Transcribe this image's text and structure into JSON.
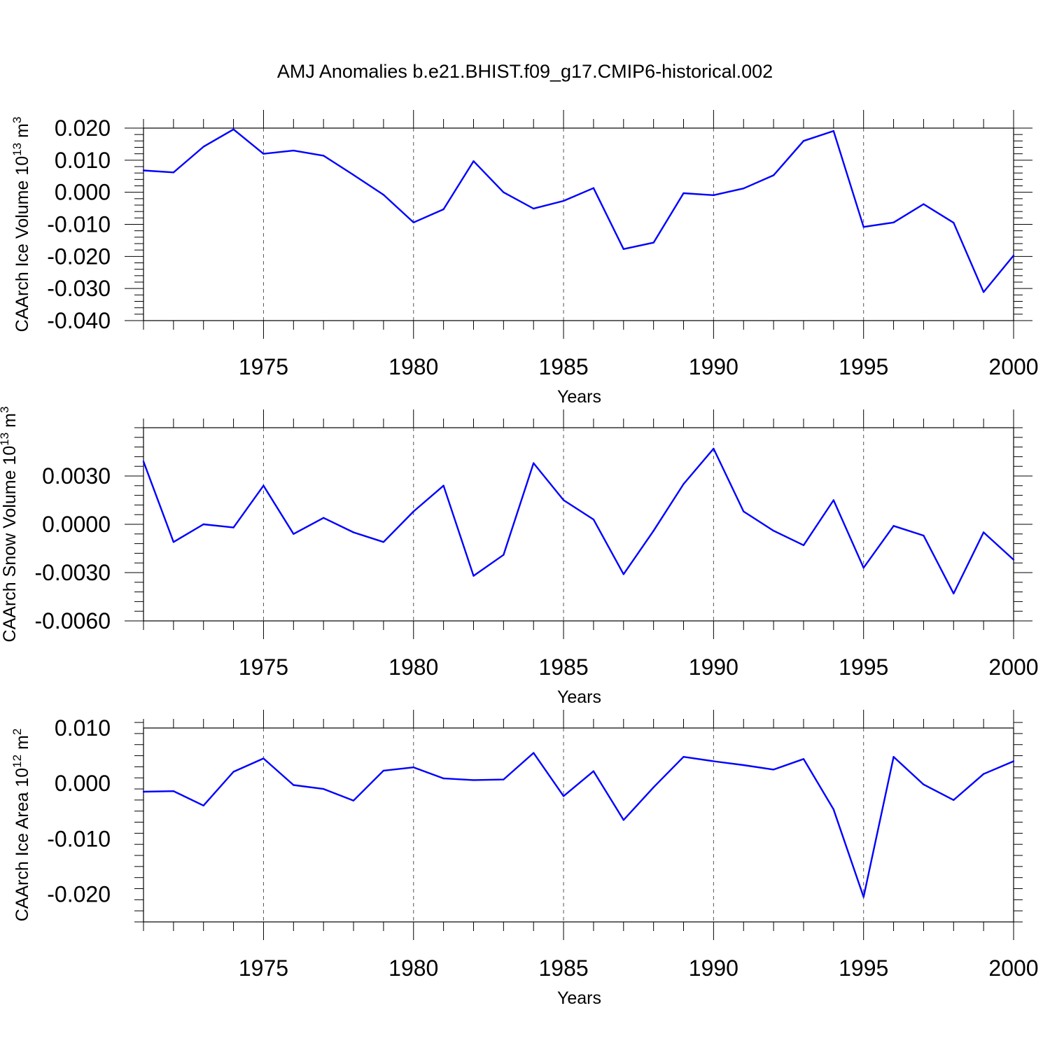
{
  "title": "AMJ Anomalies b.e21.BHIST.f09_g17.CMIP6-historical.002",
  "chart_data": [
    {
      "type": "line",
      "ylabel": "CAArch Ice Volume",
      "ylabel_unit": "10",
      "ylabel_exp1": "13",
      "ylabel_unit2": " m",
      "ylabel_exp2": "3",
      "xlabel": "Years",
      "xlim": [
        1971,
        2000
      ],
      "ylim": [
        -0.04,
        0.02
      ],
      "yticks": [
        0.02,
        0.01,
        0.0,
        -0.01,
        -0.02,
        -0.03,
        -0.04
      ],
      "ytick_labels": [
        "0.020",
        "0.010",
        "0.000",
        "-0.010",
        "-0.020",
        "-0.030",
        "-0.040"
      ],
      "xticks": [
        1975,
        1980,
        1985,
        1990,
        1995,
        2000
      ],
      "xtick_labels": [
        "1975",
        "1980",
        "1985",
        "1990",
        "1995",
        "2000"
      ],
      "color": "#0000ff",
      "x": [
        1971,
        1972,
        1973,
        1974,
        1975,
        1976,
        1977,
        1978,
        1979,
        1980,
        1981,
        1982,
        1983,
        1984,
        1985,
        1986,
        1987,
        1988,
        1989,
        1990,
        1991,
        1992,
        1993,
        1994,
        1995,
        1996,
        1997,
        1998,
        1999,
        2000
      ],
      "y": [
        0.0068,
        0.0062,
        0.0142,
        0.0196,
        0.012,
        0.013,
        0.0114,
        0.0054,
        -0.0008,
        -0.0094,
        -0.0053,
        0.0097,
        0.0,
        -0.0051,
        -0.0027,
        0.0013,
        -0.0177,
        -0.0157,
        -0.0003,
        -0.0009,
        0.0012,
        0.0053,
        0.016,
        0.0191,
        -0.0108,
        -0.0094,
        -0.0037,
        -0.0095,
        -0.0311,
        -0.0197
      ]
    },
    {
      "type": "line",
      "ylabel": "CAArch Snow Volume",
      "ylabel_unit": "10",
      "ylabel_exp1": "13",
      "ylabel_unit2": " m",
      "ylabel_exp2": "3",
      "xlabel": "Years",
      "xlim": [
        1971,
        2000
      ],
      "ylim": [
        -0.006,
        0.006
      ],
      "yticks": [
        0.003,
        0.0,
        -0.003,
        -0.006
      ],
      "ytick_labels": [
        "0.0030",
        "0.0000",
        "-0.0030",
        "-0.0060"
      ],
      "xticks": [
        1975,
        1980,
        1985,
        1990,
        1995,
        2000
      ],
      "xtick_labels": [
        "1975",
        "1980",
        "1985",
        "1990",
        "1995",
        "2000"
      ],
      "color": "#0000ff",
      "x": [
        1971,
        1972,
        1973,
        1974,
        1975,
        1976,
        1977,
        1978,
        1979,
        1980,
        1981,
        1982,
        1983,
        1984,
        1985,
        1986,
        1987,
        1988,
        1989,
        1990,
        1991,
        1992,
        1993,
        1994,
        1995,
        1996,
        1997,
        1998,
        1999,
        2000
      ],
      "y": [
        0.0039,
        -0.0011,
        0.0,
        -0.0002,
        0.0024,
        -0.0006,
        0.0004,
        -0.0005,
        -0.0011,
        0.0008,
        0.0024,
        -0.0032,
        -0.0019,
        0.0038,
        0.0015,
        0.0003,
        -0.0031,
        -0.0004,
        0.0025,
        0.0047,
        0.0008,
        -0.0004,
        -0.0013,
        0.0015,
        -0.0027,
        -0.0001,
        -0.0007,
        -0.0043,
        -0.0005,
        -0.0022
      ]
    },
    {
      "type": "line",
      "ylabel": "CAArch Ice Area",
      "ylabel_unit": "10",
      "ylabel_exp1": "12",
      "ylabel_unit2": " m",
      "ylabel_exp2": "2",
      "xlabel": "Years",
      "xlim": [
        1971,
        2000
      ],
      "ylim": [
        -0.025,
        0.01
      ],
      "yticks": [
        0.01,
        0.0,
        -0.01,
        -0.02
      ],
      "ytick_labels": [
        "0.010",
        "0.000",
        "-0.010",
        "-0.020"
      ],
      "xticks": [
        1975,
        1980,
        1985,
        1990,
        1995,
        2000
      ],
      "xtick_labels": [
        "1975",
        "1980",
        "1985",
        "1990",
        "1995",
        "2000"
      ],
      "color": "#0000ff",
      "x": [
        1971,
        1972,
        1973,
        1974,
        1975,
        1976,
        1977,
        1978,
        1979,
        1980,
        1981,
        1982,
        1983,
        1984,
        1985,
        1986,
        1987,
        1988,
        1989,
        1990,
        1991,
        1992,
        1993,
        1994,
        1995,
        1996,
        1997,
        1998,
        1999,
        2000
      ],
      "y": [
        -0.0015,
        -0.0014,
        -0.004,
        0.0021,
        0.0045,
        -0.0003,
        -0.001,
        -0.0031,
        0.0023,
        0.0029,
        0.0009,
        0.0006,
        0.0007,
        0.0055,
        -0.0023,
        0.0022,
        -0.0066,
        -0.0007,
        0.0048,
        0.004,
        0.0033,
        0.0025,
        0.0044,
        -0.0047,
        -0.0205,
        0.0048,
        -0.0002,
        -0.003,
        0.0017,
        0.004
      ]
    }
  ]
}
